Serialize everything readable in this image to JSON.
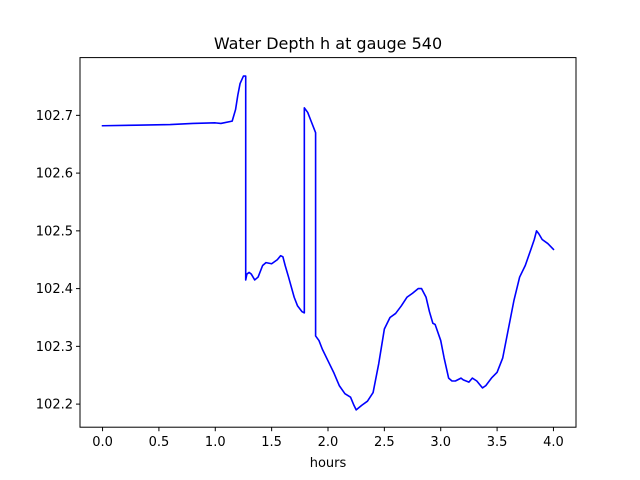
{
  "chart_data": {
    "type": "line",
    "title": "Water Depth h at gauge 540",
    "xlabel": "hours",
    "ylabel": "",
    "xlim": [
      -0.2,
      4.2
    ],
    "ylim": [
      102.16,
      102.8
    ],
    "xticks": [
      0.0,
      0.5,
      1.0,
      1.5,
      2.0,
      2.5,
      3.0,
      3.5,
      4.0
    ],
    "xtick_labels": [
      "0.0",
      "0.5",
      "1.0",
      "1.5",
      "2.0",
      "2.5",
      "3.0",
      "3.5",
      "4.0"
    ],
    "yticks": [
      102.2,
      102.3,
      102.4,
      102.5,
      102.6,
      102.7
    ],
    "ytick_labels": [
      "102.2",
      "102.3",
      "102.4",
      "102.5",
      "102.6",
      "102.7"
    ],
    "grid": false,
    "legend": "none",
    "series": [
      {
        "color": "#0000ff",
        "x": [
          0.0,
          0.3,
          0.6,
          0.8,
          1.0,
          1.05,
          1.15,
          1.18,
          1.2,
          1.22,
          1.25,
          1.27,
          1.27,
          1.28,
          1.3,
          1.32,
          1.35,
          1.38,
          1.42,
          1.45,
          1.5,
          1.55,
          1.58,
          1.6,
          1.62,
          1.65,
          1.7,
          1.73,
          1.77,
          1.79,
          1.79,
          1.82,
          1.85,
          1.89,
          1.89,
          1.92,
          1.95,
          2.0,
          2.05,
          2.1,
          2.15,
          2.2,
          2.23,
          2.25,
          2.3,
          2.35,
          2.4,
          2.45,
          2.5,
          2.55,
          2.6,
          2.65,
          2.7,
          2.75,
          2.8,
          2.83,
          2.87,
          2.9,
          2.93,
          2.95,
          3.0,
          3.03,
          3.07,
          3.1,
          3.13,
          3.18,
          3.2,
          3.25,
          3.28,
          3.32,
          3.37,
          3.4,
          3.45,
          3.5,
          3.55,
          3.6,
          3.65,
          3.7,
          3.75,
          3.8,
          3.83,
          3.85,
          3.87,
          3.9,
          3.95,
          4.0
        ],
        "y": [
          102.682,
          102.683,
          102.684,
          102.686,
          102.687,
          102.686,
          102.69,
          102.71,
          102.735,
          102.755,
          102.768,
          102.768,
          102.415,
          102.425,
          102.428,
          102.425,
          102.415,
          102.42,
          102.44,
          102.445,
          102.443,
          102.45,
          102.457,
          102.455,
          102.44,
          102.42,
          102.385,
          102.37,
          102.36,
          102.358,
          102.713,
          102.705,
          102.69,
          102.67,
          102.318,
          102.31,
          102.295,
          102.275,
          102.255,
          102.232,
          102.218,
          102.212,
          102.198,
          102.19,
          102.198,
          102.205,
          102.22,
          102.27,
          102.33,
          102.35,
          102.357,
          102.37,
          102.385,
          102.392,
          102.4,
          102.4,
          102.385,
          102.36,
          102.34,
          102.338,
          102.31,
          102.28,
          102.245,
          102.24,
          102.24,
          102.245,
          102.242,
          102.238,
          102.245,
          102.24,
          102.228,
          102.232,
          102.245,
          102.255,
          102.28,
          102.33,
          102.38,
          102.42,
          102.44,
          102.468,
          102.485,
          102.5,
          102.495,
          102.485,
          102.478,
          102.468
        ]
      }
    ]
  }
}
